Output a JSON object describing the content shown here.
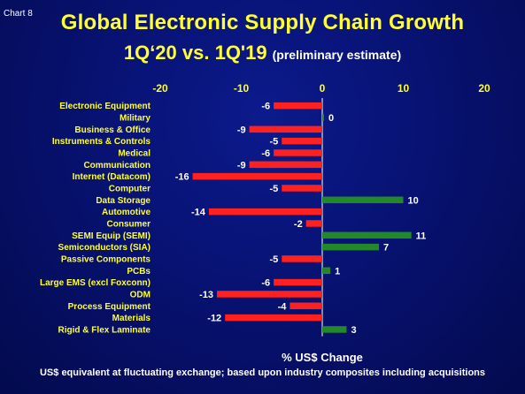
{
  "header": {
    "chart_number": "Chart 8",
    "title": "Global Electronic Supply Chain Growth",
    "subtitle_main": "1Q‘20 vs. 1Q'19",
    "subtitle_note": "(preliminary estimate)"
  },
  "footnote": "US$ equivalent at fluctuating exchange; based upon industry composites  including acquisitions",
  "colors": {
    "background": "#071272",
    "title": "#ffff33",
    "negative_bar": "#ff2020",
    "positive_bar": "#22882a",
    "category_label": "#ffff33",
    "value_label": "#ffffff"
  },
  "chart_data": {
    "type": "bar",
    "orientation": "horizontal",
    "xlabel": "% US$ Change",
    "xlim": [
      -20,
      20
    ],
    "xticks": [
      -20,
      -10,
      0,
      10,
      20
    ],
    "xtick_position": "top",
    "grid": false,
    "legend": "none",
    "categories": [
      "Electronic Equipment",
      "Military",
      "Business & Office",
      "Instruments & Controls",
      "Medical",
      "Communication",
      "Internet (Datacom)",
      "Computer",
      "Data Storage",
      "Automotive",
      "Consumer",
      "SEMI Equip (SEMI)",
      "Semiconductors (SIA)",
      "Passive Components",
      "PCBs",
      "Large EMS (excl Foxconn)",
      "ODM",
      "Process Equipment",
      "Materials",
      "Rigid & Flex Laminate"
    ],
    "values": [
      -6,
      0,
      -9,
      -5,
      -6,
      -9,
      -16,
      -5,
      10,
      -14,
      -2,
      11,
      7,
      -5,
      1,
      -6,
      -13,
      -4,
      -12,
      3
    ],
    "value_labels": [
      "-6",
      "0",
      "-9",
      "-5",
      "-6",
      "-9",
      "-16",
      "-5",
      "10",
      "-14",
      "-2",
      "11",
      "7",
      "-5",
      "1",
      "-6",
      "-13",
      "-4",
      "-12",
      "3"
    ]
  }
}
